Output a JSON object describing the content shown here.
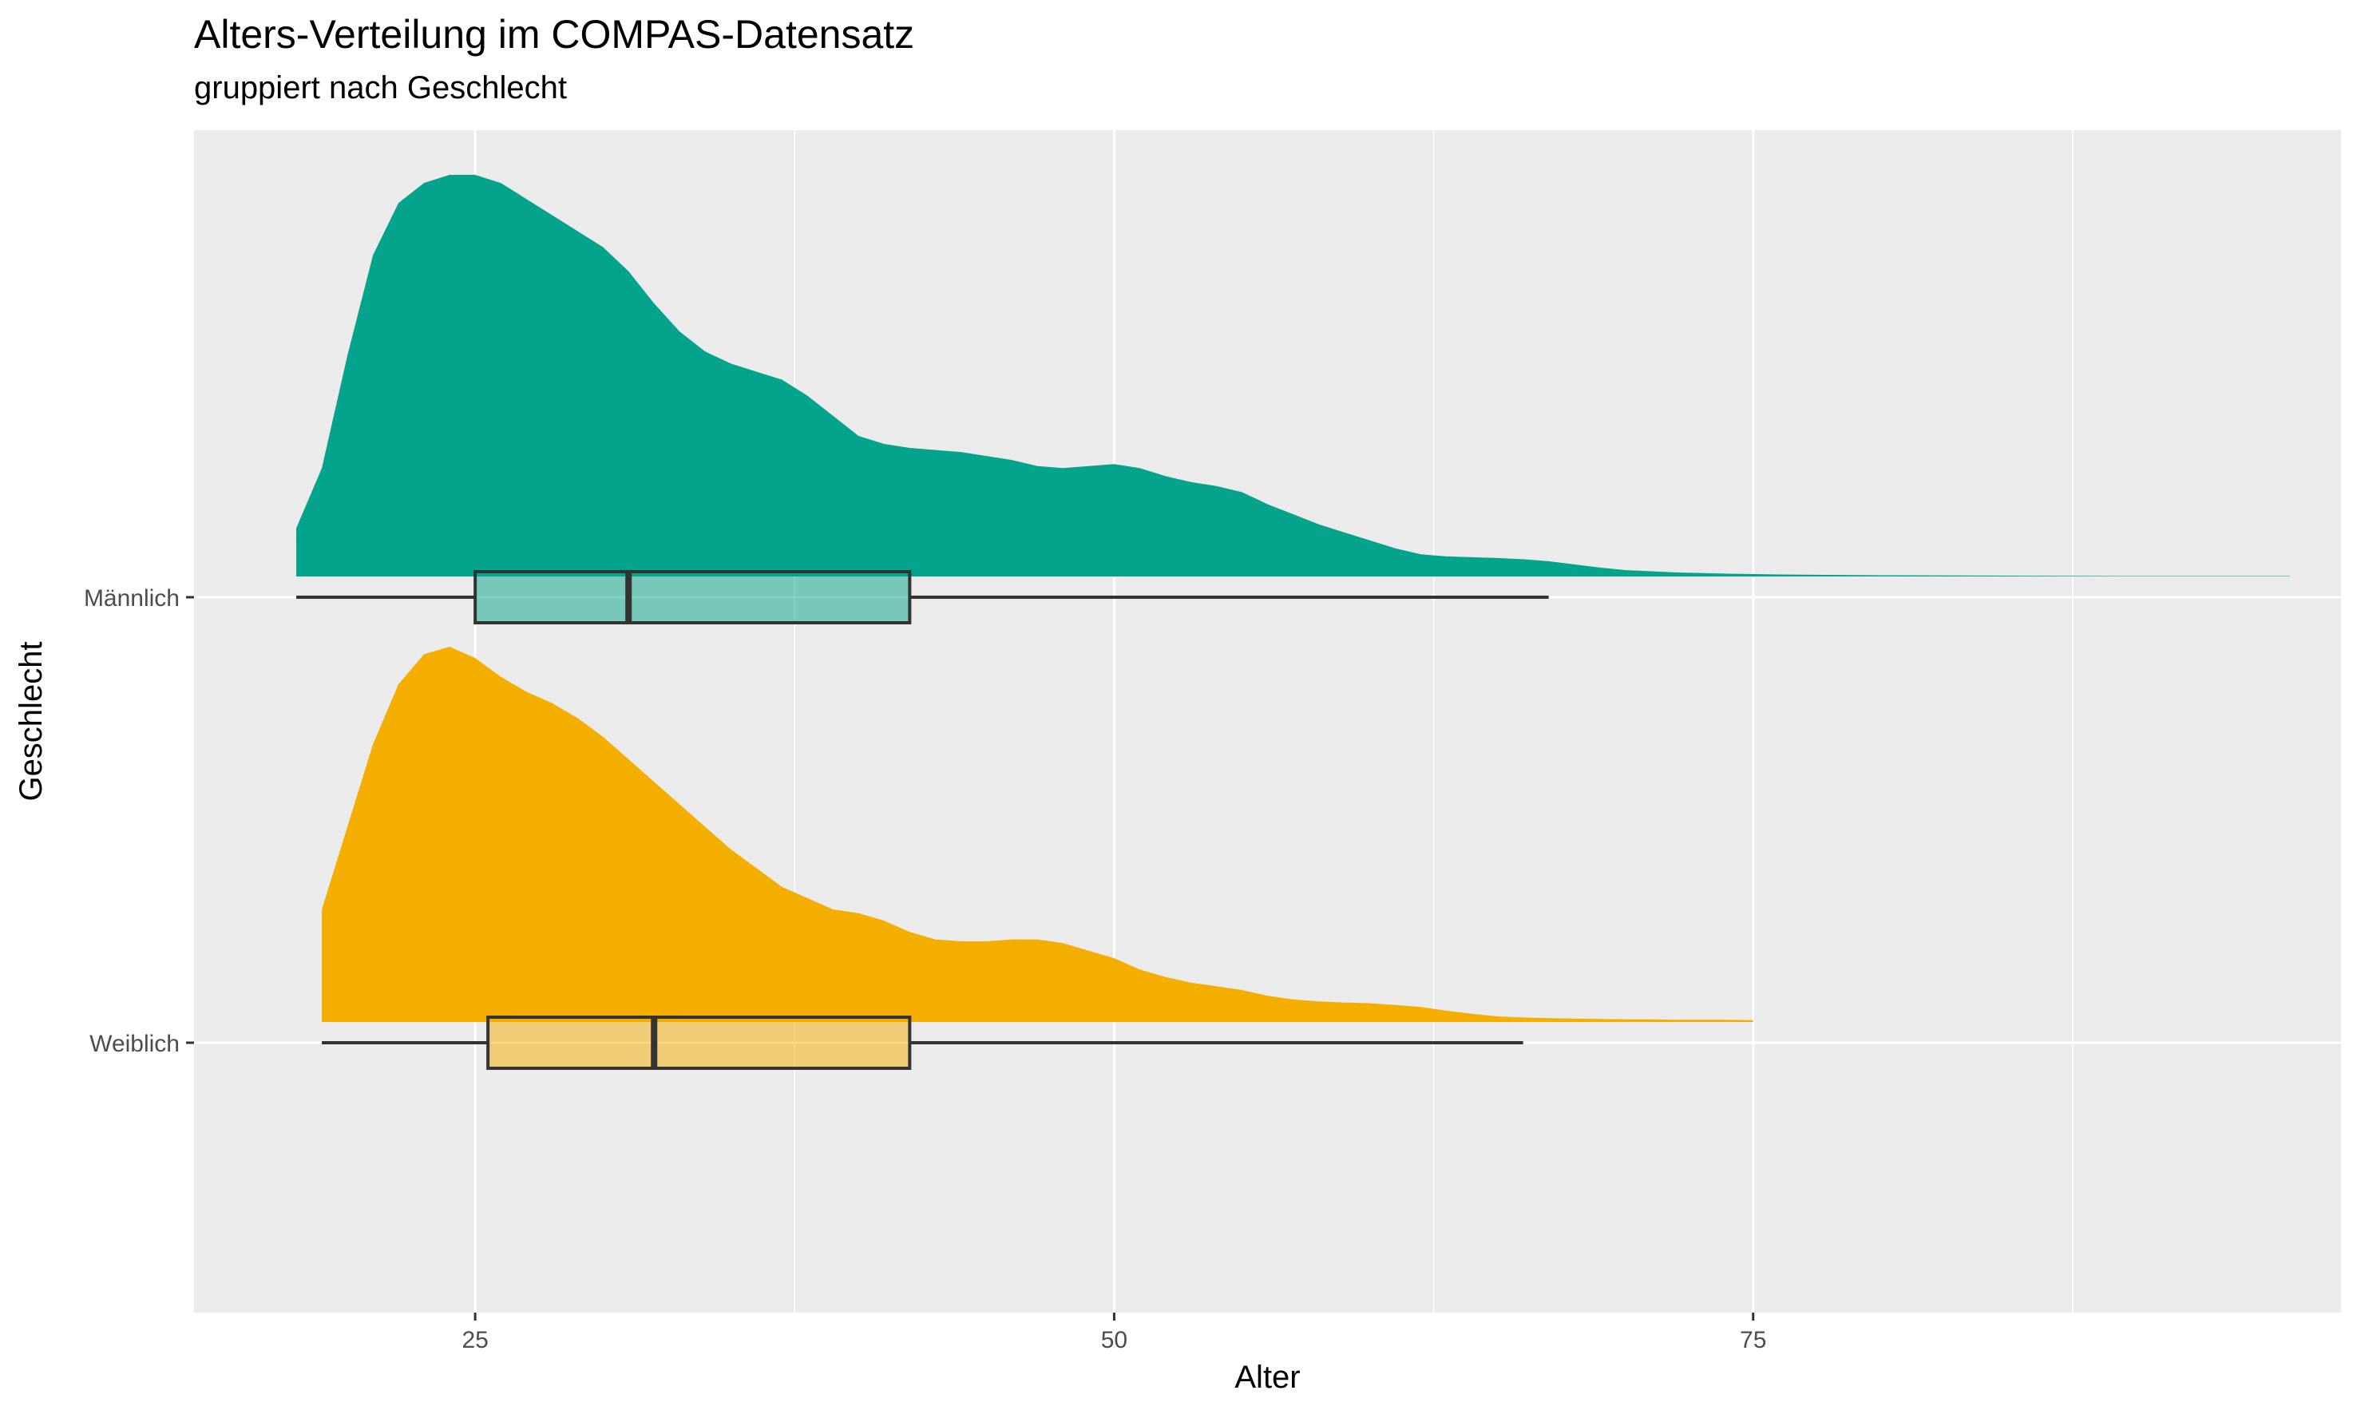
{
  "chart_data": {
    "type": "raincloud",
    "title": "Alters-Verteilung im COMPAS-Datensatz",
    "subtitle": "gruppiert nach Geschlecht",
    "xlabel": "Alter",
    "ylabel": "Geschlecht",
    "xlim": [
      14,
      98
    ],
    "x_ticks": [
      25,
      50,
      75
    ],
    "categories": [
      "Männlich",
      "Weiblich"
    ],
    "grid": true,
    "series": [
      {
        "name": "Männlich",
        "color": "#04A38C",
        "density_x": [
          18,
          19,
          20,
          21,
          22,
          23,
          24,
          25,
          26,
          27,
          28,
          29,
          30,
          31,
          32,
          33,
          34,
          35,
          36,
          37,
          38,
          39,
          40,
          41,
          42,
          43,
          44,
          45,
          46,
          47,
          48,
          49,
          50,
          51,
          52,
          53,
          54,
          55,
          56,
          57,
          58,
          59,
          60,
          61,
          62,
          63,
          64,
          65,
          66,
          67,
          68,
          69,
          70,
          72,
          74,
          76,
          78,
          80,
          85,
          90,
          96
        ],
        "density_y": [
          0.12,
          0.27,
          0.55,
          0.8,
          0.93,
          0.98,
          1.0,
          1.0,
          0.98,
          0.94,
          0.9,
          0.86,
          0.82,
          0.76,
          0.68,
          0.61,
          0.56,
          0.53,
          0.51,
          0.49,
          0.45,
          0.4,
          0.35,
          0.33,
          0.32,
          0.315,
          0.31,
          0.3,
          0.29,
          0.275,
          0.27,
          0.275,
          0.28,
          0.27,
          0.25,
          0.235,
          0.225,
          0.21,
          0.18,
          0.155,
          0.13,
          0.11,
          0.09,
          0.07,
          0.055,
          0.05,
          0.048,
          0.046,
          0.043,
          0.038,
          0.03,
          0.022,
          0.016,
          0.01,
          0.007,
          0.005,
          0.004,
          0.003,
          0.002,
          0.001,
          0.001
        ],
        "box": {
          "min": 18,
          "q1": 25,
          "median": 31,
          "q3": 42,
          "max": 67
        }
      },
      {
        "name": "Weiblich",
        "color": "#F4AE00",
        "density_x": [
          19,
          20,
          21,
          22,
          23,
          24,
          25,
          26,
          27,
          28,
          29,
          30,
          31,
          32,
          33,
          34,
          35,
          36,
          37,
          38,
          39,
          40,
          41,
          42,
          43,
          44,
          45,
          46,
          47,
          48,
          49,
          50,
          51,
          52,
          53,
          54,
          55,
          56,
          57,
          58,
          59,
          60,
          61,
          62,
          63,
          64,
          65,
          66,
          67,
          68,
          69,
          70,
          71,
          72,
          73,
          74,
          75
        ],
        "density_y": [
          0.3,
          0.52,
          0.74,
          0.9,
          0.98,
          1.0,
          0.97,
          0.92,
          0.88,
          0.85,
          0.81,
          0.76,
          0.7,
          0.64,
          0.58,
          0.52,
          0.46,
          0.41,
          0.36,
          0.33,
          0.3,
          0.29,
          0.27,
          0.24,
          0.22,
          0.215,
          0.215,
          0.22,
          0.22,
          0.21,
          0.19,
          0.17,
          0.14,
          0.12,
          0.105,
          0.095,
          0.085,
          0.07,
          0.06,
          0.055,
          0.052,
          0.05,
          0.045,
          0.04,
          0.03,
          0.022,
          0.015,
          0.012,
          0.01,
          0.009,
          0.008,
          0.007,
          0.007,
          0.006,
          0.006,
          0.006,
          0.005
        ],
        "box": {
          "min": 19,
          "q1": 25.5,
          "median": 32,
          "q3": 42,
          "max": 66
        }
      }
    ]
  }
}
